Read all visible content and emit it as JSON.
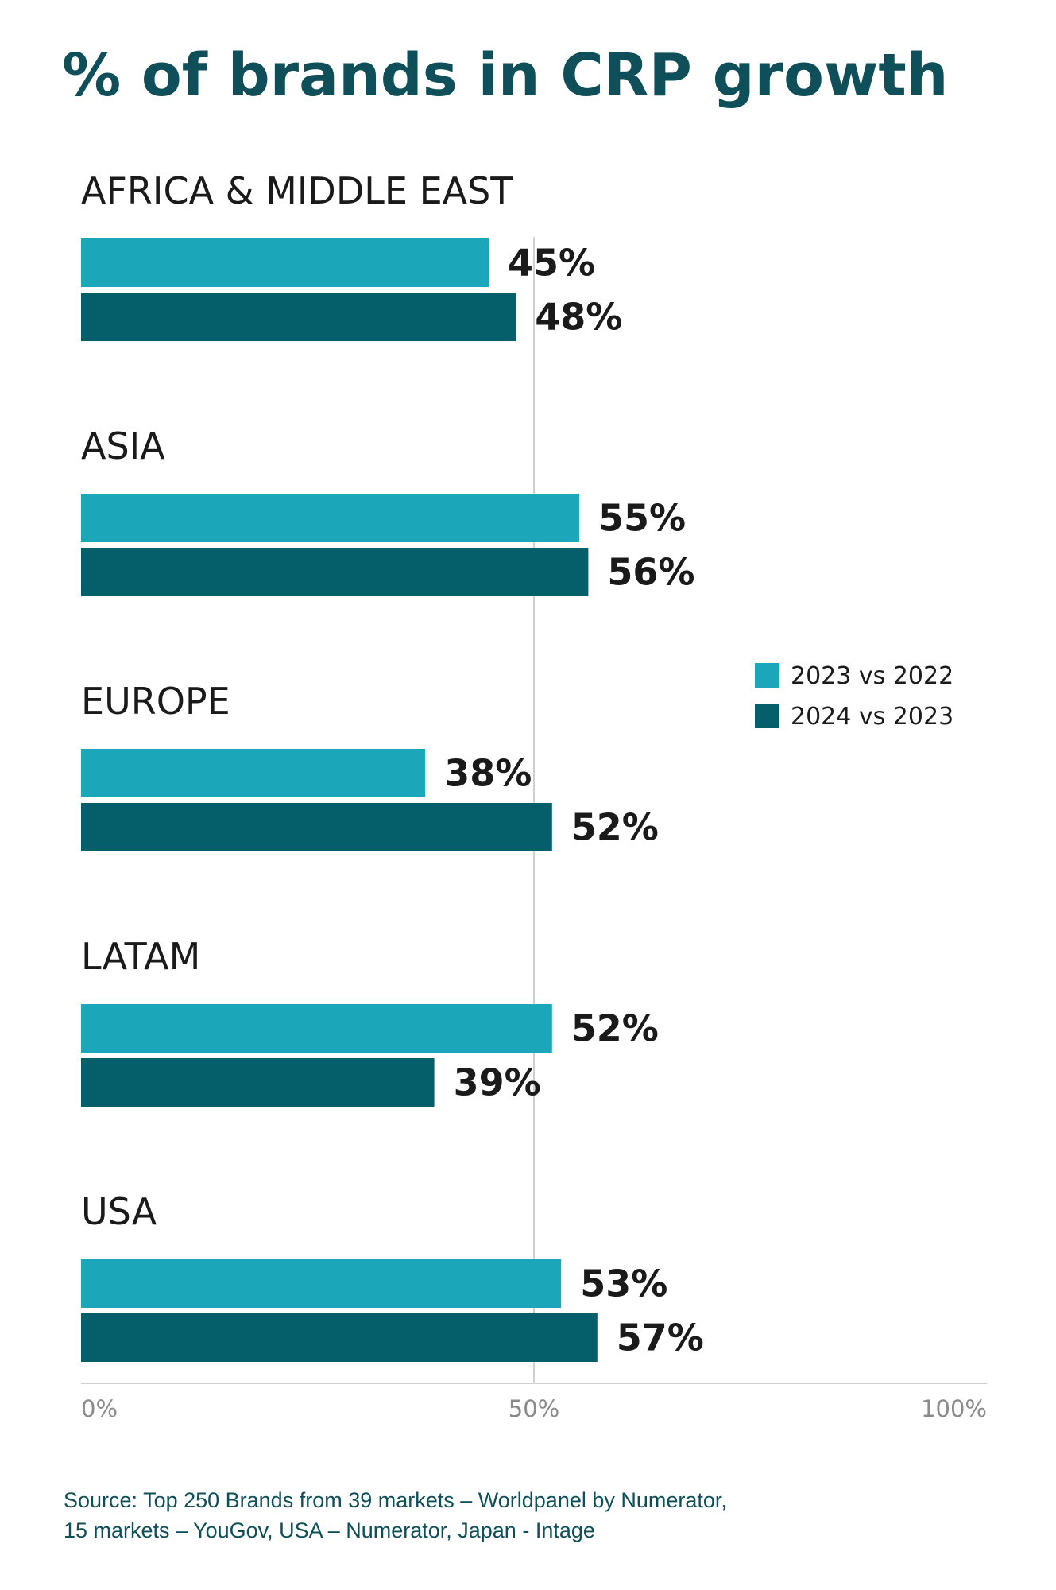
{
  "chart_data": {
    "type": "bar",
    "orientation": "horizontal",
    "title": "% of brands in CRP growth",
    "categories": [
      "AFRICA & MIDDLE EAST",
      "ASIA",
      "EUROPE",
      "LATAM",
      "USA"
    ],
    "series": [
      {
        "name": "2023 vs 2022",
        "values": [
          45,
          55,
          38,
          52,
          53
        ],
        "color": "#1ba7b9"
      },
      {
        "name": "2024 vs 2023",
        "values": [
          48,
          56,
          52,
          39,
          57
        ],
        "color": "#055f6b"
      }
    ],
    "value_labels": [
      [
        "45%",
        "55%",
        "38%",
        "52%",
        "53%"
      ],
      [
        "48%",
        "56%",
        "52%",
        "39%",
        "57%"
      ]
    ],
    "xlim": [
      0,
      100
    ],
    "x_ticks": [
      0,
      50,
      100
    ],
    "x_tick_labels": [
      "0%",
      "50%",
      "100%"
    ],
    "reference_line": 50,
    "grid": false,
    "legend_placement": "right"
  },
  "source_lines": [
    "Source: Top 250 Brands from 39 markets – Worldpanel by Numerator,",
    "15 markets – YouGov, USA – Numerator, Japan - Intage"
  ],
  "colors": {
    "title": "#0e4f59",
    "category_label": "#1a1a1a",
    "value_label": "#1a1a1a",
    "axis": "#d0d0d0",
    "tick_label": "#8a8a8a"
  }
}
